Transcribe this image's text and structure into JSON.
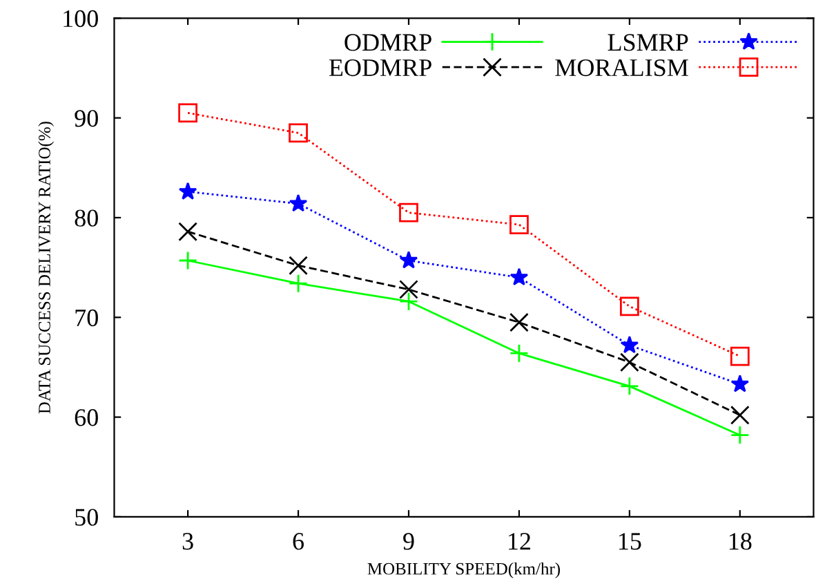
{
  "chart_data": {
    "type": "line",
    "xlabel": "MOBILITY SPEED(km/hr)",
    "ylabel": "DATA SUCCESS DELIVERY RATIO(%)",
    "x": [
      3,
      6,
      9,
      12,
      15,
      18
    ],
    "series": [
      {
        "name": "ODMRP",
        "color": "#00ff00",
        "marker": "cross",
        "line_style": "solid",
        "values": [
          75.7,
          73.4,
          71.6,
          66.4,
          63.1,
          58.2
        ]
      },
      {
        "name": "EODMRP",
        "color": "#000000",
        "marker": "x",
        "line_style": "dashed",
        "values": [
          78.6,
          75.2,
          72.8,
          69.5,
          65.5,
          60.2
        ]
      },
      {
        "name": "LSMRP",
        "color": "#0000ff",
        "marker": "star",
        "line_style": "dotted",
        "values": [
          82.6,
          81.4,
          75.7,
          74.0,
          67.2,
          63.3
        ]
      },
      {
        "name": "MORALISM",
        "color": "#ff0000",
        "marker": "square",
        "line_style": "dotted",
        "values": [
          90.5,
          88.5,
          80.5,
          79.3,
          71.1,
          66.1
        ]
      }
    ],
    "xlim": [
      1,
      20
    ],
    "xticks": [
      3,
      6,
      9,
      12,
      15,
      18
    ],
    "ylim": [
      50,
      100
    ],
    "yticks": [
      50,
      60,
      70,
      80,
      90,
      100
    ],
    "grid": false,
    "legend": "top right"
  }
}
